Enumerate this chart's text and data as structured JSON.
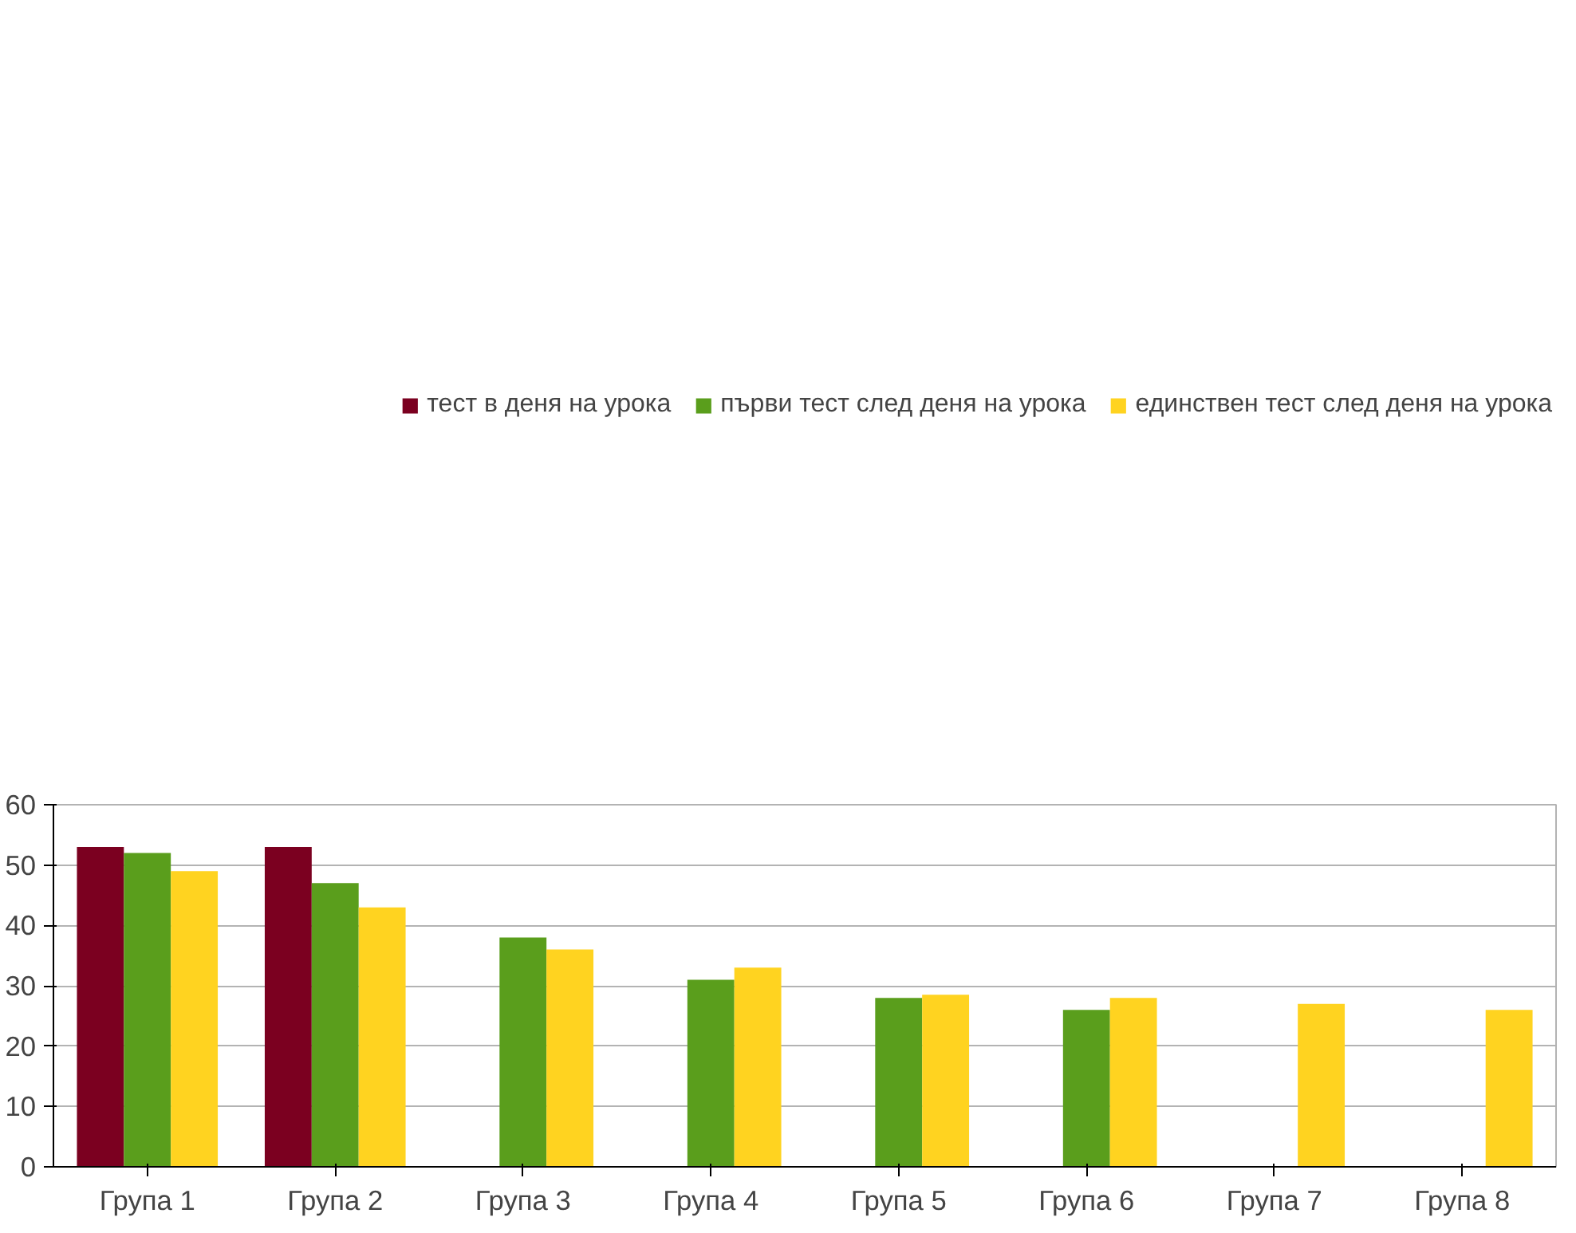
{
  "chart_data": {
    "type": "bar",
    "categories": [
      "Група 1",
      "Група 2",
      "Група 3",
      "Група 4",
      "Група 5",
      "Група 6",
      "Група 7",
      "Група 8"
    ],
    "series": [
      {
        "name": "тест в деня на урока",
        "color": "#7b0020",
        "values": [
          53,
          53,
          null,
          null,
          null,
          null,
          null,
          null
        ]
      },
      {
        "name": "първи тест след деня на урока",
        "color": "#5a9e1c",
        "values": [
          52,
          47,
          38,
          31,
          28,
          26,
          null,
          null
        ]
      },
      {
        "name": "единствен тест след деня на урока",
        "color": "#ffd320",
        "values": [
          49,
          43,
          36,
          33,
          28.5,
          28,
          27,
          26
        ]
      }
    ],
    "ylim": [
      0,
      60
    ],
    "yticks": [
      0,
      10,
      20,
      30,
      40,
      50,
      60
    ],
    "grid": "y",
    "legend": "top right"
  }
}
